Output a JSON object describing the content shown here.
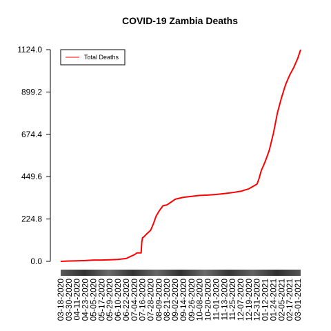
{
  "chart_data": {
    "type": "line",
    "title": "COVID-19 Zambia Deaths",
    "xlabel": "",
    "ylabel": "",
    "ylim": [
      0,
      1124
    ],
    "yticks": [
      "0.0",
      "224.8",
      "449.6",
      "674.4",
      "899.2",
      "1124.0"
    ],
    "x_categories": [
      "03-18-2020",
      "03-30-2020",
      "04-11-2020",
      "04-23-2020",
      "05-05-2020",
      "05-17-2020",
      "05-29-2020",
      "06-10-2020",
      "06-22-2020",
      "07-04-2020",
      "07-16-2020",
      "07-28-2020",
      "08-09-2020",
      "08-21-2020",
      "09-02-2020",
      "09-14-2020",
      "09-26-2020",
      "10-08-2020",
      "10-20-2020",
      "11-01-2020",
      "11-13-2020",
      "11-25-2020",
      "12-07-2020",
      "12-19-2020",
      "12-31-2020",
      "01-12-2021",
      "01-24-2021",
      "02-05-2021",
      "02-17-2021",
      "03-01-2021"
    ],
    "legend": {
      "position": "top-left",
      "entries": [
        "Total Deaths"
      ]
    },
    "series": [
      {
        "name": "Total Deaths",
        "color": "#ff0000",
        "x": [
          "03-18-2020",
          "03-30-2020",
          "04-11-2020",
          "04-23-2020",
          "05-05-2020",
          "05-17-2020",
          "05-29-2020",
          "06-10-2020",
          "06-22-2020",
          "06-28-2020",
          "07-04-2020",
          "07-08-2020",
          "07-10-2020",
          "07-14-2020",
          "07-15-2020",
          "07-16-2020",
          "07-18-2020",
          "07-22-2020",
          "07-28-2020",
          "08-01-2020",
          "08-05-2020",
          "08-09-2020",
          "08-12-2020",
          "08-15-2020",
          "08-21-2020",
          "08-27-2020",
          "09-02-2020",
          "09-08-2020",
          "09-14-2020",
          "09-26-2020",
          "10-08-2020",
          "10-20-2020",
          "11-01-2020",
          "11-13-2020",
          "11-25-2020",
          "12-07-2020",
          "12-19-2020",
          "12-31-2020",
          "01-03-2021",
          "01-06-2021",
          "01-12-2021",
          "01-18-2021",
          "01-24-2021",
          "01-30-2021",
          "02-05-2021",
          "02-11-2021",
          "02-17-2021",
          "02-23-2021",
          "03-01-2021",
          "03-05-2021"
        ],
        "values": [
          0,
          2,
          3,
          4,
          7,
          7,
          8,
          10,
          15,
          25,
          35,
          45,
          45,
          45,
          100,
          125,
          130,
          145,
          165,
          200,
          240,
          265,
          280,
          295,
          300,
          315,
          330,
          335,
          340,
          345,
          350,
          352,
          355,
          360,
          365,
          372,
          385,
          410,
          440,
          480,
          530,
          590,
          680,
          790,
          870,
          940,
          990,
          1030,
          1080,
          1124
        ]
      }
    ]
  }
}
